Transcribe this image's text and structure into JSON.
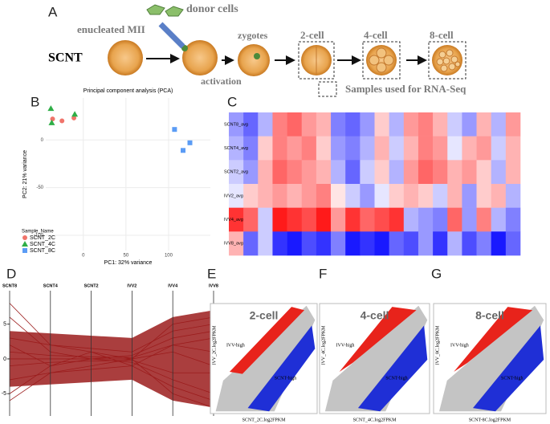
{
  "panel_labels": [
    "A",
    "B",
    "C",
    "D",
    "E",
    "F",
    "G"
  ],
  "diagram": {
    "donor": "donor cells",
    "enucleated": "enucleated MII",
    "method": "SCNT",
    "zygotes": "zygotes",
    "activation": "activation",
    "stages": [
      "2-cell",
      "4-cell",
      "8-cell"
    ],
    "legend": "Samples used for RNA-Seq"
  },
  "chart_data": [
    {
      "type": "scatter",
      "title": "Principal component analysis (PCA)",
      "x_label": "PC1: 32% variance",
      "y_label": "PC2: 21% variance",
      "legend_title": "Sample_Name",
      "grid": true,
      "xlim": [
        -44,
        149
      ],
      "ylim": [
        -116,
        44
      ],
      "xticks": [
        0,
        50,
        100
      ],
      "yticks": [
        0,
        -50,
        -100
      ],
      "series": [
        {
          "name": "SCNT_2C",
          "color": "#f0746b",
          "marker": "circle",
          "x": [
            -36,
            -25,
            -11
          ],
          "values": [
            22,
            20,
            23
          ]
        },
        {
          "name": "SCNT_4C",
          "color": "#2fae47",
          "marker": "triangle",
          "x": [
            -38,
            -37,
            -10
          ],
          "values": [
            33,
            18,
            27
          ]
        },
        {
          "name": "SCNT_8C",
          "color": "#5b9cf5",
          "marker": "square",
          "x": [
            107,
            117,
            125
          ],
          "values": [
            11,
            -11,
            -3
          ]
        }
      ]
    },
    {
      "type": "heatmap",
      "rows": [
        "SCNT8_avg",
        "SCNT4_avg",
        "SCNT2_avg",
        "IVV2_avg",
        "IVV4_avg",
        "IVV8_avg"
      ],
      "clim": [
        -1,
        1
      ],
      "values": [
        [
          -0.4,
          -0.6,
          -0.3,
          0.5,
          0.6,
          0.4,
          0.3,
          -0.5,
          -0.6,
          -0.4,
          0.2,
          -0.3,
          0.4,
          0.5,
          0.3,
          -0.2,
          -0.4,
          0.3,
          -0.3,
          0.4
        ],
        [
          -0.3,
          -0.5,
          0.2,
          0.5,
          0.4,
          0.5,
          0.2,
          -0.4,
          -0.5,
          -0.3,
          0.3,
          -0.2,
          0.3,
          0.5,
          0.4,
          -0.1,
          0.3,
          0.4,
          -0.2,
          0.3
        ],
        [
          -0.2,
          -0.4,
          0.3,
          0.6,
          0.5,
          0.4,
          0.3,
          -0.3,
          -0.6,
          -0.2,
          0.2,
          -0.3,
          0.4,
          0.6,
          0.5,
          0.3,
          0.4,
          0.2,
          -0.3,
          0.3
        ],
        [
          -0.1,
          0.2,
          0.3,
          0.4,
          0.3,
          0.4,
          0.5,
          0.1,
          -0.2,
          -0.4,
          -0.1,
          0.2,
          0.3,
          0.2,
          -0.2,
          0.3,
          -0.4,
          0.2,
          0.3,
          -0.3
        ],
        [
          0.8,
          0.6,
          -0.2,
          0.9,
          0.8,
          0.7,
          0.9,
          0.4,
          0.8,
          0.6,
          0.7,
          0.8,
          -0.3,
          -0.4,
          -0.5,
          0.6,
          -0.4,
          0.5,
          -0.3,
          -0.5
        ],
        [
          0.3,
          -0.6,
          -0.2,
          -0.8,
          -0.9,
          -0.7,
          -0.8,
          -0.5,
          -0.9,
          -0.8,
          -0.9,
          -0.6,
          -0.7,
          -0.4,
          -0.8,
          -0.3,
          -0.7,
          -0.5,
          -0.9,
          -0.6
        ]
      ]
    },
    {
      "type": "parallel",
      "categories": [
        "SCNT8",
        "SCNT4",
        "SCNT2",
        "IVV2",
        "IVV4",
        "IVV8"
      ],
      "color": "#9b1c1c",
      "ylim": [
        -8.2,
        9.8
      ],
      "yticks": [
        5,
        0,
        -5
      ],
      "lines": [
        [
          3,
          2,
          1.5,
          1,
          4,
          5
        ],
        [
          -3,
          -2,
          -1.5,
          -1,
          -4,
          -6
        ],
        [
          6,
          1,
          0,
          0.5,
          3,
          4
        ],
        [
          -5,
          -1,
          0,
          -0.5,
          -3,
          -5
        ],
        [
          1,
          0.5,
          0.3,
          0.2,
          2,
          1
        ],
        [
          -1,
          -0.5,
          -0.3,
          -0.2,
          -2,
          -2
        ],
        [
          8,
          2,
          1,
          0,
          5,
          6
        ],
        [
          -6,
          -2,
          -1,
          0,
          -5,
          -7
        ],
        [
          0,
          0,
          0,
          0,
          1,
          -1
        ],
        [
          2,
          -1,
          1,
          -1,
          2,
          3
        ]
      ]
    },
    {
      "type": "scatter",
      "title": "2-cell",
      "x_label": "SCNT_2C.log2FPKM",
      "y_label": "IVV_2C.log2FPKM",
      "annotations": [
        "IVV-high",
        "SCNT-high"
      ]
    },
    {
      "type": "scatter",
      "title": "4-cell",
      "x_label": "SCNT_4C.log2FPKM",
      "y_label": "IVV_4C.log2FPKM",
      "annotations": [
        "IVV-high",
        "SCNT-high"
      ]
    },
    {
      "type": "scatter",
      "title": "8-cell",
      "x_label": "SCNT-8C.log2FPKM",
      "y_label": "IVV_8C.log2FPKM",
      "annotations": [
        "IVV-high",
        "SCNT-high"
      ]
    }
  ]
}
